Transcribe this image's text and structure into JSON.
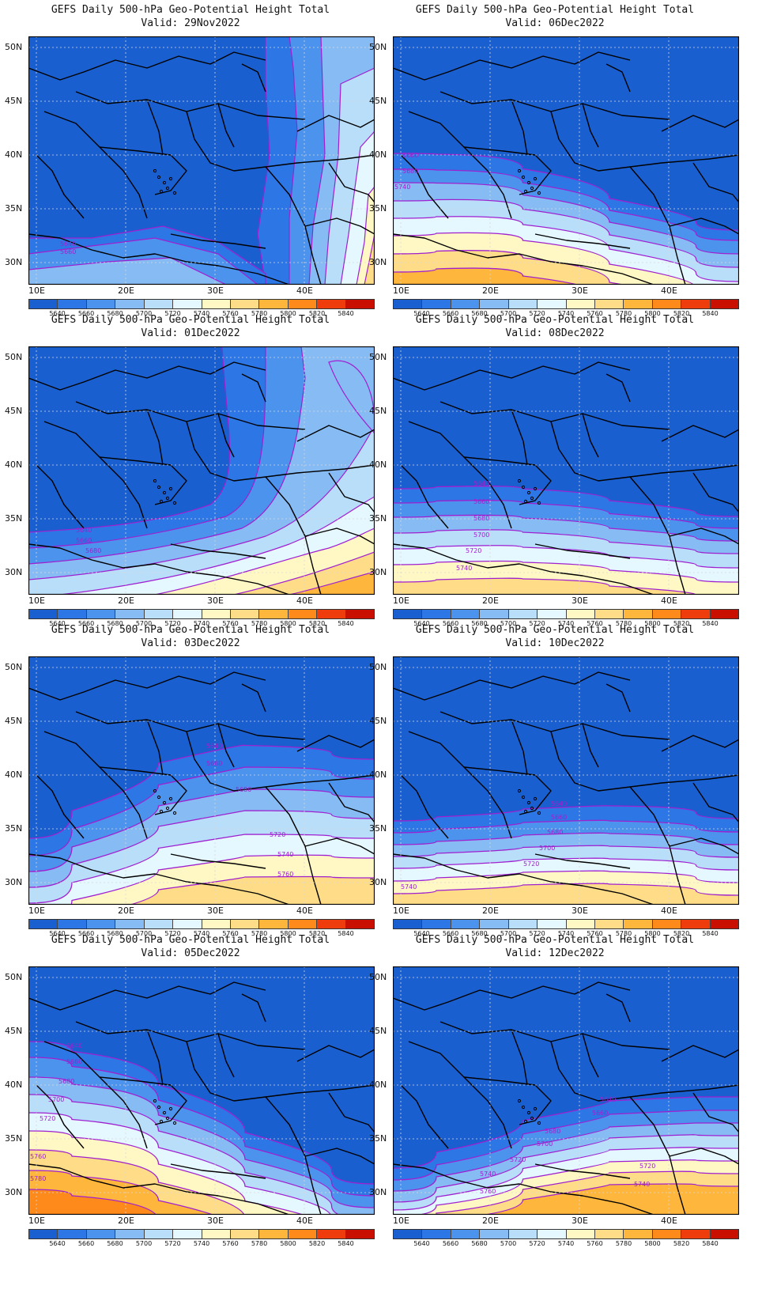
{
  "title_line": "GEFS Daily 500-hPa Geo-Potential Height Total",
  "lat_labels": [
    "50N",
    "45N",
    "40N",
    "35N",
    "30N"
  ],
  "lon_labels": [
    "10E",
    "20E",
    "30E",
    "40E"
  ],
  "colorbar": {
    "labels": [
      "5640",
      "5660",
      "5680",
      "5700",
      "5720",
      "5740",
      "5760",
      "5780",
      "5800",
      "5820",
      "5840"
    ],
    "colors": [
      "#1a5fd0",
      "#2c76e6",
      "#4c93ee",
      "#86bbf4",
      "#b8defa",
      "#e5f8ff",
      "#fff8c4",
      "#ffdd88",
      "#ffb63c",
      "#ff8a1c",
      "#ef3c0c",
      "#c80f00"
    ]
  },
  "panels": [
    {
      "valid": "Valid: 29Nov2022",
      "contour_labels": [
        {
          "text": "5640"
        },
        {
          "text": "5660"
        }
      ]
    },
    {
      "valid": "Valid: 06Dec2022",
      "contour_labels": [
        {
          "text": "5660"
        },
        {
          "text": "5680"
        },
        {
          "text": "5740"
        }
      ]
    },
    {
      "valid": "Valid: 01Dec2022",
      "contour_labels": [
        {
          "text": "5640"
        },
        {
          "text": "5660"
        },
        {
          "text": "5680"
        }
      ]
    },
    {
      "valid": "Valid: 08Dec2022",
      "contour_labels": [
        {
          "text": "5640"
        },
        {
          "text": "5660"
        },
        {
          "text": "5680"
        },
        {
          "text": "5700"
        },
        {
          "text": "5720"
        },
        {
          "text": "5740"
        }
      ]
    },
    {
      "valid": "Valid: 03Dec2022",
      "contour_labels": [
        {
          "text": "5640"
        },
        {
          "text": "5660"
        },
        {
          "text": "5680"
        },
        {
          "text": "5720"
        },
        {
          "text": "5740"
        },
        {
          "text": "5760"
        }
      ]
    },
    {
      "valid": "Valid: 10Dec2022",
      "contour_labels": [
        {
          "text": "5640"
        },
        {
          "text": "5660"
        },
        {
          "text": "5680"
        },
        {
          "text": "5700"
        },
        {
          "text": "5720"
        },
        {
          "text": "5740"
        }
      ]
    },
    {
      "valid": "Valid: 05Dec2022",
      "contour_labels": [
        {
          "text": "5640"
        },
        {
          "text": "5660"
        },
        {
          "text": "5680"
        },
        {
          "text": "5700"
        },
        {
          "text": "5720"
        },
        {
          "text": "5760"
        },
        {
          "text": "5780"
        }
      ]
    },
    {
      "valid": "Valid: 12Dec2022",
      "contour_labels": [
        {
          "text": "5640"
        },
        {
          "text": "5660"
        },
        {
          "text": "5680"
        },
        {
          "text": "5700"
        },
        {
          "text": "5720"
        },
        {
          "text": "5740"
        },
        {
          "text": "5760"
        },
        {
          "text": "5720"
        },
        {
          "text": "5740"
        }
      ]
    }
  ]
}
